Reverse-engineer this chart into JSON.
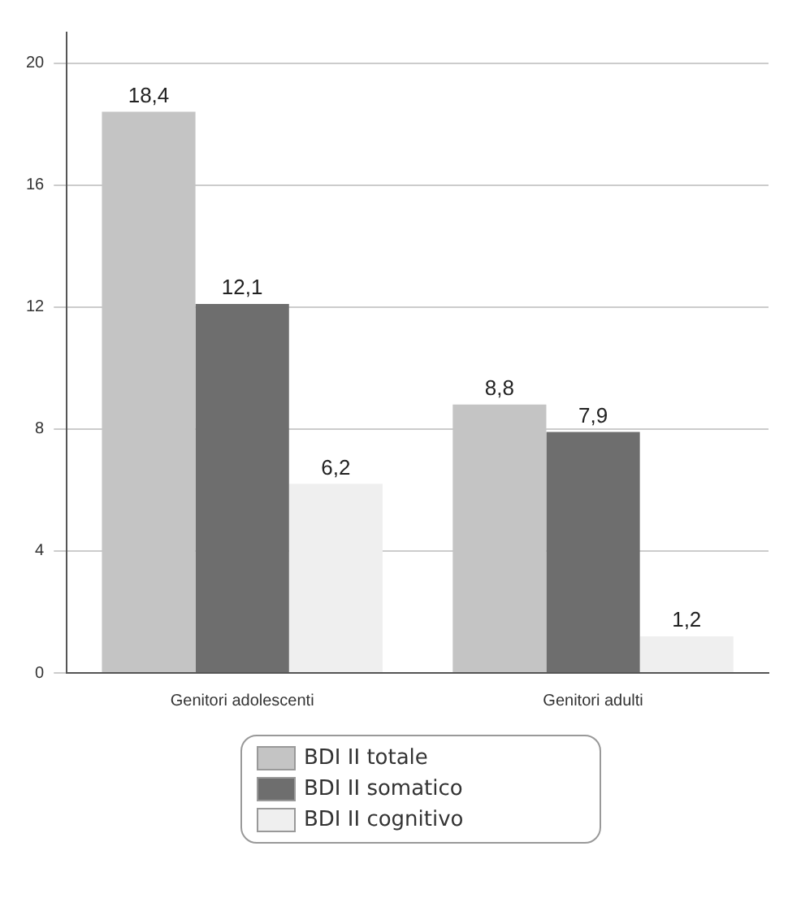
{
  "chart_data": {
    "type": "bar",
    "categories": [
      "Genitori adolescenti",
      "Genitori adulti"
    ],
    "series": [
      {
        "name": "BDI II totale",
        "color": "#c4c4c4",
        "values": [
          18.4,
          8.8
        ],
        "value_labels": [
          "18,4",
          "8,8"
        ]
      },
      {
        "name": "BDI II somatico",
        "color": "#6e6e6e",
        "values": [
          12.1,
          7.9
        ],
        "value_labels": [
          "12,1",
          "7,9"
        ]
      },
      {
        "name": "BDI II cognitivo",
        "color": "#efefef",
        "values": [
          6.2,
          1.2
        ],
        "value_labels": [
          "6,2",
          "1,2"
        ]
      }
    ],
    "ylim": [
      0,
      21
    ],
    "yticks": [
      0,
      4,
      8,
      12,
      16,
      20
    ],
    "grid": "y",
    "legend": "bottom"
  }
}
